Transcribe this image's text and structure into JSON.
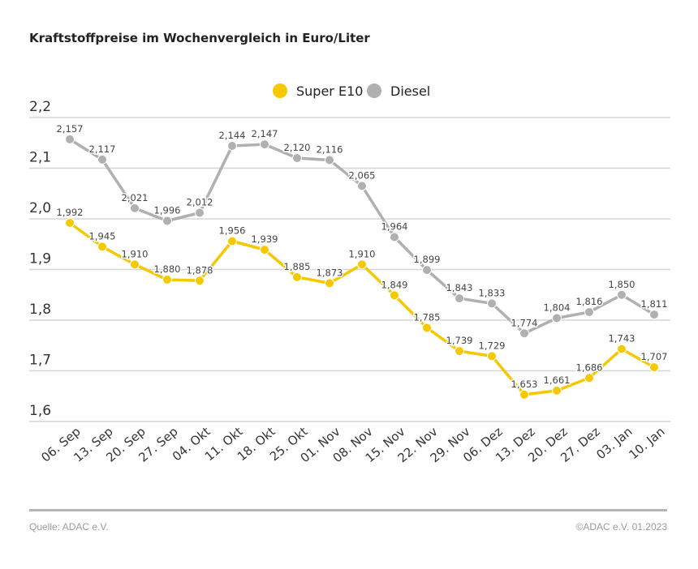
{
  "chart_data": {
    "type": "line",
    "title": "Kraftstoffpreise im Wochenvergleich in Euro/Liter",
    "categories": [
      "06. Sep",
      "13. Sep",
      "20. Sep",
      "27. Sep",
      "04. Okt",
      "11. Okt",
      "18. Okt",
      "25. Okt",
      "01. Nov",
      "08. Nov",
      "15. Nov",
      "22. Nov",
      "29. Nov",
      "06. Dez",
      "13. Dez",
      "20. Dez",
      "27. Dez",
      "03. Jan",
      "10. Jan"
    ],
    "series": [
      {
        "name": "Super E10",
        "color": "#f5c800",
        "values": [
          1.992,
          1.945,
          1.91,
          1.88,
          1.878,
          1.956,
          1.939,
          1.885,
          1.873,
          1.91,
          1.849,
          1.785,
          1.739,
          1.729,
          1.653,
          1.661,
          1.686,
          1.743,
          1.707
        ]
      },
      {
        "name": "Diesel",
        "color": "#b0b0b0",
        "values": [
          2.157,
          2.117,
          2.021,
          1.996,
          2.012,
          2.144,
          2.147,
          2.12,
          2.116,
          2.065,
          1.964,
          1.899,
          1.843,
          1.833,
          1.774,
          1.804,
          1.816,
          1.85,
          1.811
        ]
      }
    ],
    "ylim": [
      1.6,
      2.2
    ],
    "yticks": [
      "1,6",
      "1,7",
      "1,8",
      "1,9",
      "2,0",
      "2,1",
      "2,2"
    ],
    "grid": true,
    "legend_position": "top-center",
    "xlabel": "",
    "ylabel": ""
  },
  "footer": {
    "source": "Quelle: ADAC e.V.",
    "copyright": "©ADAC e.V.  01.2023"
  }
}
